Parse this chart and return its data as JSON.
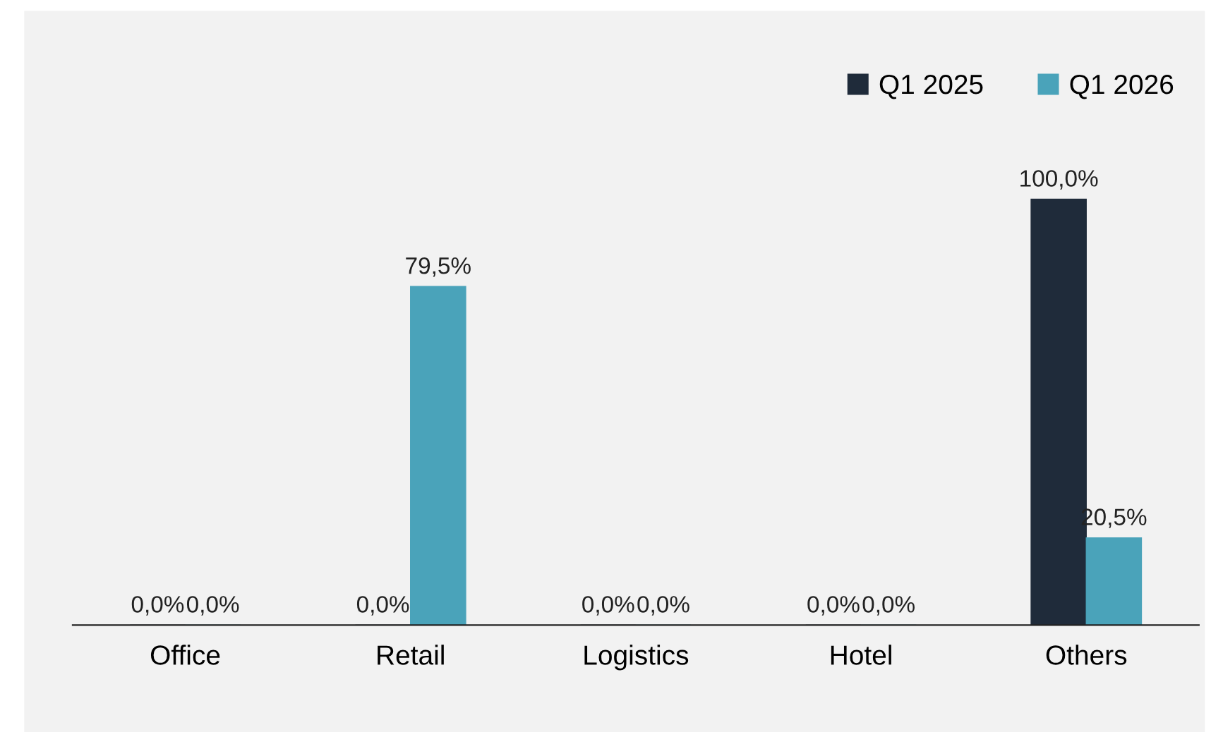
{
  "chart_data": {
    "type": "bar",
    "categories": [
      "Office",
      "Retail",
      "Logistics",
      "Hotel",
      "Others"
    ],
    "series": [
      {
        "name": "Q1 2025",
        "color": "#1f2b3a",
        "values": [
          0,
          0,
          0,
          0,
          100
        ],
        "value_labels": [
          "0,0%",
          "0,0%",
          "0,0%",
          "0,0%",
          "100,0%"
        ]
      },
      {
        "name": "Q1 2026",
        "color": "#4aa3ba",
        "values": [
          0,
          79.5,
          0,
          0,
          20.5
        ],
        "value_labels": [
          "0,0%",
          "79,5%",
          "0,0%",
          "0,0%",
          "20,5%"
        ]
      }
    ],
    "tick_labels": "x",
    "legend": "top right"
  }
}
